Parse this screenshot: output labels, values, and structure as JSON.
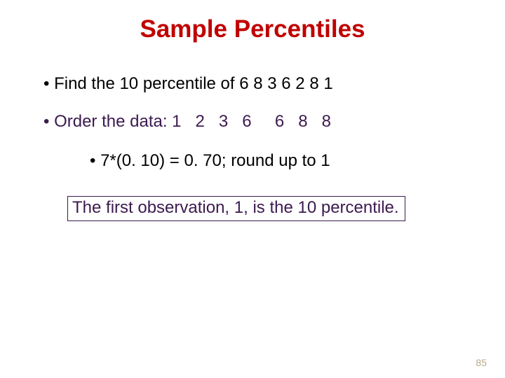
{
  "title": {
    "text": "Sample Percentiles",
    "color": "#c00000",
    "fontsize": 35
  },
  "line1": {
    "text": "• Find the 10 percentile of 6 8 3 6 2 8 1",
    "color": "#000000",
    "fontsize": 24
  },
  "line2": {
    "text": "• Order the data: 1   2   3   6     6   8   8",
    "color": "#3c1a4f",
    "fontsize": 24
  },
  "line3": {
    "text": "• 7*(0. 10) = 0. 70; round up to 1",
    "color": "#000000",
    "fontsize": 24
  },
  "boxed": {
    "text": "The first observation, 1, is the 10 percentile.",
    "text_color": "#3c1a4f",
    "border_color": "#3c1a4f",
    "fontsize": 24
  },
  "page_number": {
    "text": "85",
    "color": "#b8a98a",
    "fontsize": 14
  }
}
